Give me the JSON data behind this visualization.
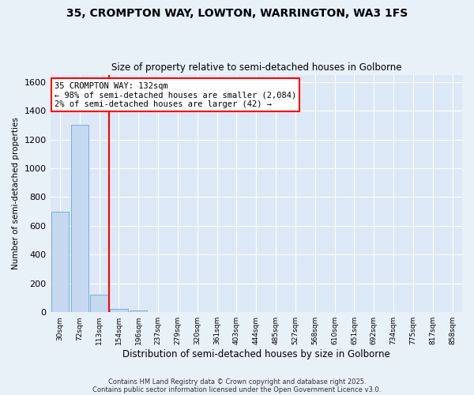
{
  "title": "35, CROMPTON WAY, LOWTON, WARRINGTON, WA3 1FS",
  "subtitle": "Size of property relative to semi-detached houses in Golborne",
  "xlabel": "Distribution of semi-detached houses by size in Golborne",
  "ylabel": "Number of semi-detached properties",
  "categories": [
    "30sqm",
    "72sqm",
    "113sqm",
    "154sqm",
    "196sqm",
    "237sqm",
    "279sqm",
    "320sqm",
    "361sqm",
    "403sqm",
    "444sqm",
    "485sqm",
    "527sqm",
    "568sqm",
    "610sqm",
    "651sqm",
    "692sqm",
    "734sqm",
    "775sqm",
    "817sqm",
    "858sqm"
  ],
  "values": [
    700,
    1300,
    120,
    25,
    10,
    0,
    0,
    0,
    0,
    0,
    0,
    0,
    0,
    0,
    0,
    0,
    0,
    0,
    0,
    0,
    0
  ],
  "bar_color": "#c5d8ef",
  "bar_edge_color": "#7aafd4",
  "red_line_x": 2.5,
  "annotation_line1": "35 CROMPTON WAY: 132sqm",
  "annotation_line2": "← 98% of semi-detached houses are smaller (2,084)",
  "annotation_line3": "2% of semi-detached houses are larger (42) →",
  "ylim": [
    0,
    1650
  ],
  "yticks": [
    0,
    200,
    400,
    600,
    800,
    1000,
    1200,
    1400,
    1600
  ],
  "footer_line1": "Contains HM Land Registry data © Crown copyright and database right 2025.",
  "footer_line2": "Contains public sector information licensed under the Open Government Licence v3.0.",
  "bg_color": "#e8f0f8",
  "plot_bg_color": "#dce8f5",
  "title_fontsize": 10,
  "subtitle_fontsize": 8.5,
  "ylabel_fontsize": 7.5,
  "xlabel_fontsize": 8.5,
  "ytick_fontsize": 8,
  "xtick_fontsize": 6.5,
  "ann_fontsize": 7.5,
  "footer_fontsize": 6
}
